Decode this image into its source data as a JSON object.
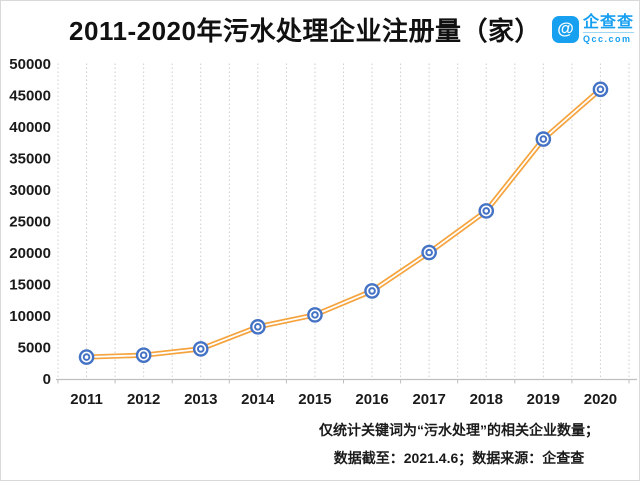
{
  "logo": {
    "name": "企查查",
    "domain": "Qcc.com",
    "symbol": "@",
    "brand_color": "#18A0F0"
  },
  "footer": {
    "line1": "仅统计关键词为“污水处理”的相关企业数量；",
    "line2": "数据截至：2021.4.6；数据来源：企查查"
  },
  "chart_data": {
    "type": "line",
    "title": "2011-2020年污水处理企业注册量（家）",
    "categories": [
      "2011",
      "2012",
      "2013",
      "2014",
      "2015",
      "2016",
      "2017",
      "2018",
      "2019",
      "2020"
    ],
    "values": [
      3400,
      3700,
      4700,
      8200,
      10100,
      13900,
      20000,
      26600,
      38000,
      45900
    ],
    "xlabel": "",
    "ylabel": "",
    "ylim": [
      0,
      50000
    ],
    "ytick_step": 5000,
    "yticks": [
      0,
      5000,
      10000,
      15000,
      20000,
      25000,
      30000,
      35000,
      40000,
      45000,
      50000
    ],
    "legend": "none",
    "grid": "vertical-dotted",
    "line_color": "#F5A33C",
    "line_core_color": "#FFFFFF",
    "marker_color": "#4472C4",
    "grid_color": "#CDCDCD",
    "axis_color": "#BFBFBF"
  }
}
